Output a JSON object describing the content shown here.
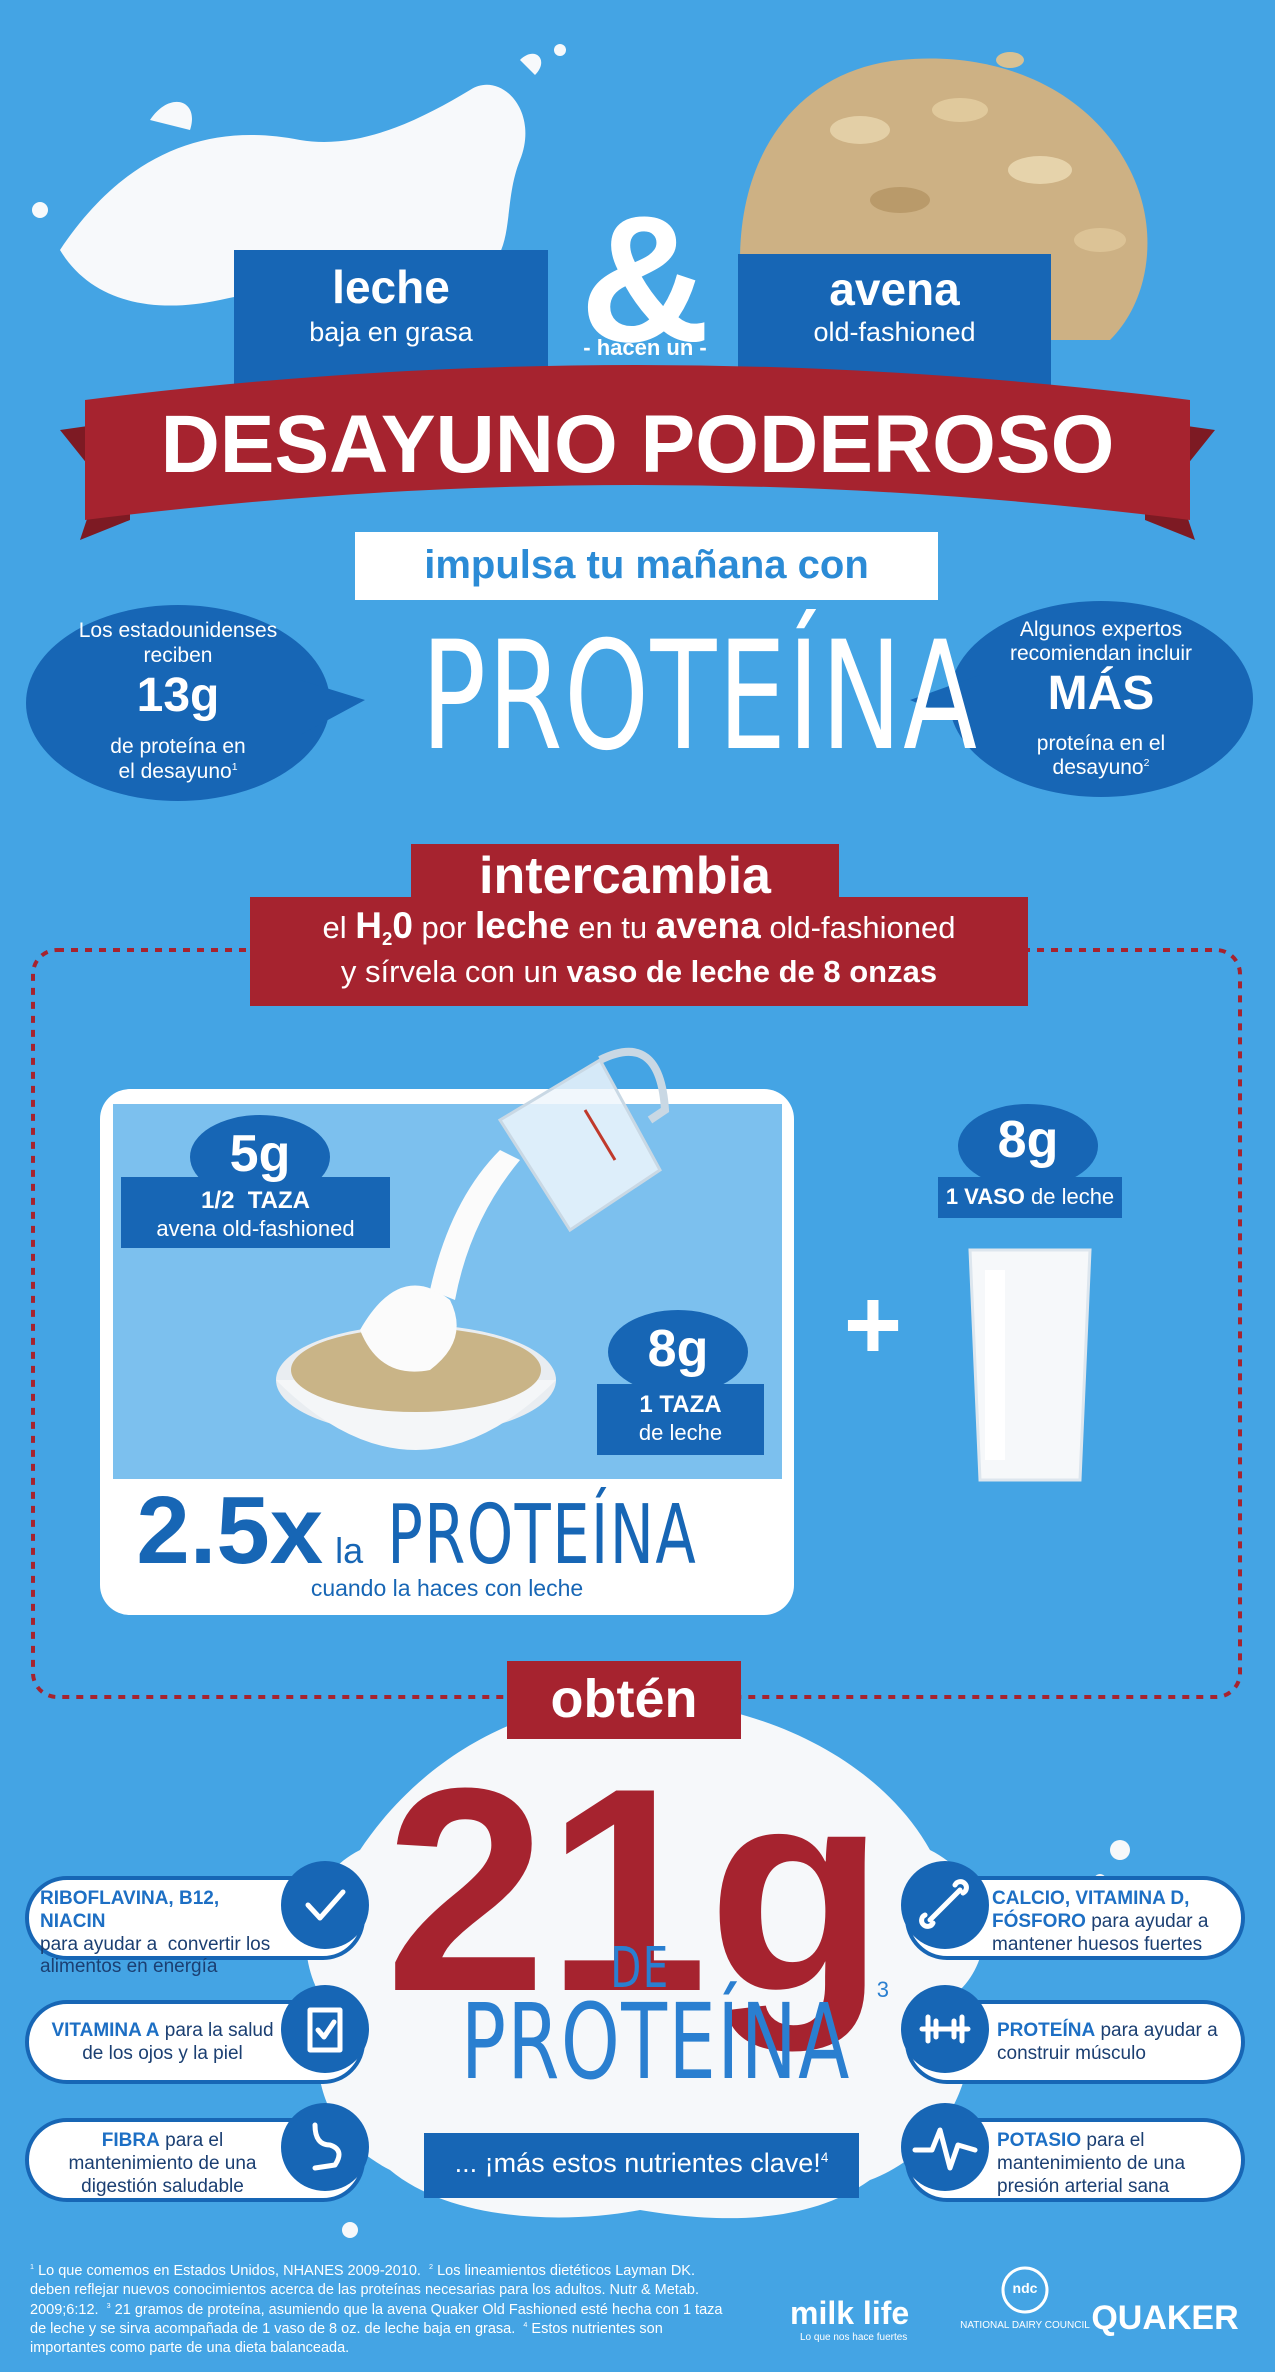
{
  "header": {
    "left_box": {
      "title": "leche",
      "subtitle": "baja en grasa"
    },
    "ampersand": "&",
    "right_box": {
      "title": "avena",
      "subtitle": "old-fashioned"
    },
    "connector": "- hacen un -",
    "banner": "DESAYUNO PODEROSO"
  },
  "intro": {
    "lead": "impulsa tu mañana con",
    "headline": "PROTEÍNA",
    "left_bubble": {
      "lines": [
        "Los estadounidenses",
        "reciben"
      ],
      "amount": "13g",
      "footer_lines": [
        "de proteína en",
        "el desayuno"
      ],
      "note": "1"
    },
    "right_bubble": {
      "lines": [
        "Algunos expertos",
        "recomiendan incluir"
      ],
      "amount": "MÁS",
      "footer_lines": [
        "proteína en el",
        "desayuno"
      ],
      "note": "2"
    }
  },
  "swap": {
    "title": "intercambia",
    "line1": [
      "el ",
      "H",
      "2",
      "0",
      " por ",
      "leche",
      " en tu ",
      "avena",
      " old-fashioned"
    ],
    "line2": [
      "y sírvela con un ",
      "vaso de leche de 8 onzas"
    ]
  },
  "bowl": {
    "oats": {
      "amount": "5g",
      "measure": "1/2  TAZA",
      "label": "avena old-fashioned"
    },
    "milk": {
      "amount": "8g",
      "measure": "1 TAZA",
      "label": "de leche"
    },
    "multiplier": "2.5x",
    "connector": "la",
    "word": "PROTEÍNA",
    "caption": "cuando la haces con leche"
  },
  "plus": "+",
  "glass": {
    "amount": "8g",
    "measure": "1 VASO",
    "label": " de leche"
  },
  "total": {
    "title": "obtén",
    "amount": "21g",
    "prefix": "DE",
    "word": "PROTEÍNA",
    "note": "3",
    "tagline": "... ¡más estos nutrientes clave!",
    "tagline_note": "4"
  },
  "nutrients": [
    {
      "highlight": "RIBOFLAVINA, B12, NIACIN",
      "text": "para ayudar a  convertir los alimentos en energía"
    },
    {
      "highlight": "VITAMINA A",
      "text": " para la salud de los ojos y la piel"
    },
    {
      "highlight": "FIBRA",
      "text": " para el mantenimiento de una digestión saludable"
    },
    {
      "highlight": "CALCIO, VITAMINA D, FÓSFORO",
      "text": " para ayudar a mantener huesos fuertes"
    },
    {
      "highlight": "PROTEÍNA",
      "text": " para ayudar a construir músculo"
    },
    {
      "highlight": "POTASIO",
      "text": " para el mantenimiento de una presión arterial sana"
    }
  ],
  "footnotes": [
    {
      "mark": "1",
      "text": " Lo que comemos en Estados Unidos, NHANES 2009-2010.  "
    },
    {
      "mark": "2",
      "text": " Los lineamientos dietéticos Layman DK. deben reflejar nuevos conocimientos acerca de las proteínas necesarias para los adultos. Nutr & Metab. 2009;6:12.  "
    },
    {
      "mark": "3",
      "text": " 21 gramos de proteína, asumiendo que la avena Quaker Old Fashioned esté hecha con 1 taza de leche y se sirva acompañada de 1 vaso de 8 oz. de leche baja en grasa.  "
    },
    {
      "mark": "4",
      "text": " Estos nutrientes son importantes como parte de una dieta balanceada."
    }
  ],
  "logos": {
    "milk_life": {
      "name": "milk life",
      "tagline": "Lo que nos hace fuertes"
    },
    "ndc": {
      "mark": "ndc",
      "name": "NATIONAL DAIRY COUNCIL"
    },
    "quaker": "QUAKER"
  }
}
